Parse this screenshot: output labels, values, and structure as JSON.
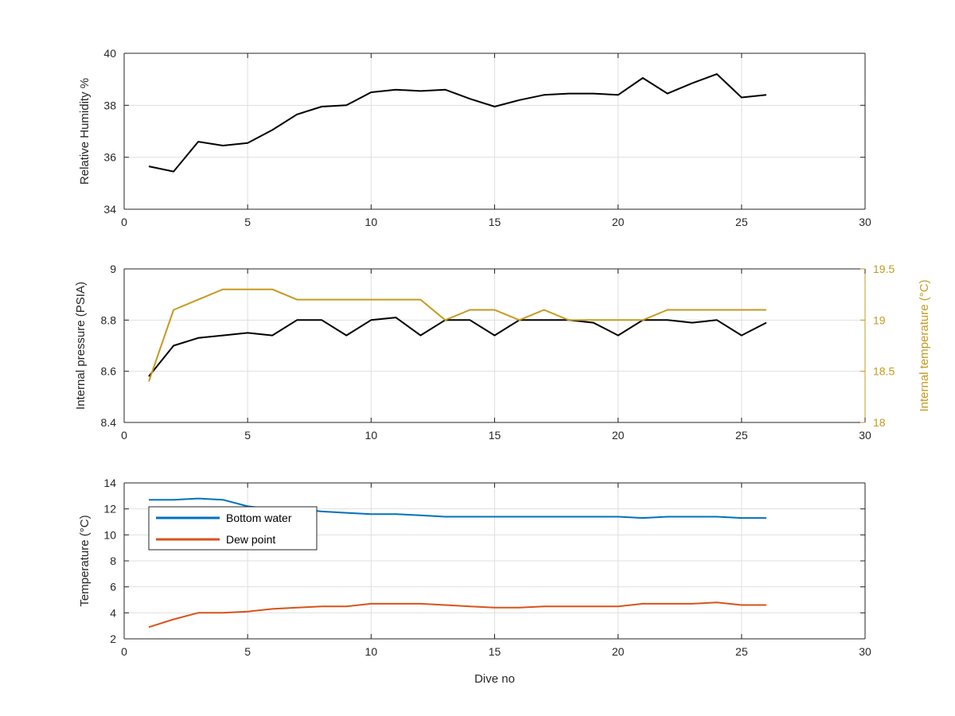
{
  "colors": {
    "black": "#000000",
    "axis": "#262626",
    "grid": "#dfdfdf",
    "gold": "#c59a1f",
    "blue": "#0072bd",
    "orange": "#d95319"
  },
  "chart_data": [
    {
      "type": "line",
      "xlabel": "",
      "ylabel": "Relative Humidity %",
      "xlim": [
        0,
        30
      ],
      "ylim": [
        34,
        40
      ],
      "xticks": [
        0,
        5,
        10,
        15,
        20,
        25,
        30
      ],
      "yticks": [
        34,
        36,
        38,
        40
      ],
      "grid": true,
      "x": [
        1,
        2,
        3,
        4,
        5,
        6,
        7,
        8,
        9,
        10,
        11,
        12,
        13,
        14,
        15,
        16,
        17,
        18,
        19,
        20,
        21,
        22,
        23,
        24,
        25,
        26
      ],
      "series": [
        {
          "color": "black",
          "axis": "left",
          "values": [
            35.65,
            35.45,
            36.6,
            36.45,
            36.55,
            37.05,
            37.65,
            37.95,
            38.0,
            38.5,
            38.6,
            38.55,
            38.6,
            38.25,
            37.95,
            38.2,
            38.4,
            38.45,
            38.45,
            38.4,
            39.05,
            38.45,
            38.85,
            39.2,
            38.3,
            38.4
          ]
        }
      ]
    },
    {
      "type": "line",
      "xlabel": "",
      "ylabel": "Internal pressure (PSIA)",
      "y2label": "Internal temperature (°C)",
      "xlim": [
        0,
        30
      ],
      "ylim": [
        8.4,
        9
      ],
      "y2lim": [
        18,
        19.5
      ],
      "xticks": [
        0,
        5,
        10,
        15,
        20,
        25,
        30
      ],
      "yticks": [
        8.4,
        8.6,
        8.8,
        9
      ],
      "ytick_labels": [
        "8.4",
        "8.6",
        "8.8",
        "9"
      ],
      "y2ticks": [
        18,
        18.5,
        19,
        19.5
      ],
      "y2tick_labels": [
        "18",
        "18.5",
        "19",
        "19.5"
      ],
      "grid": true,
      "x": [
        1,
        2,
        3,
        4,
        5,
        6,
        7,
        8,
        9,
        10,
        11,
        12,
        13,
        14,
        15,
        16,
        17,
        18,
        19,
        20,
        21,
        22,
        23,
        24,
        25,
        26
      ],
      "series": [
        {
          "color": "black",
          "axis": "left",
          "values": [
            8.58,
            8.7,
            8.73,
            8.74,
            8.75,
            8.74,
            8.8,
            8.8,
            8.74,
            8.8,
            8.81,
            8.74,
            8.8,
            8.8,
            8.74,
            8.8,
            8.8,
            8.8,
            8.79,
            8.74,
            8.8,
            8.8,
            8.79,
            8.8,
            8.74,
            8.79
          ]
        },
        {
          "color": "gold",
          "axis": "right",
          "values": [
            18.4,
            19.1,
            19.2,
            19.3,
            19.3,
            19.3,
            19.2,
            19.2,
            19.2,
            19.2,
            19.2,
            19.2,
            19.0,
            19.1,
            19.1,
            19.0,
            19.1,
            19.0,
            19.0,
            19.0,
            19.0,
            19.1,
            19.1,
            19.1,
            19.1,
            19.1
          ]
        }
      ]
    },
    {
      "type": "line",
      "xlabel": "Dive no",
      "ylabel": "Temperature (°C)",
      "xlim": [
        0,
        30
      ],
      "ylim": [
        2,
        14
      ],
      "xticks": [
        0,
        5,
        10,
        15,
        20,
        25,
        30
      ],
      "yticks": [
        2,
        4,
        6,
        8,
        10,
        12,
        14
      ],
      "grid": true,
      "legend": "top-left",
      "x": [
        1,
        2,
        3,
        4,
        5,
        6,
        7,
        8,
        9,
        10,
        11,
        12,
        13,
        14,
        15,
        16,
        17,
        18,
        19,
        20,
        21,
        22,
        23,
        24,
        25,
        26
      ],
      "series": [
        {
          "name": "Bottom water",
          "color": "blue",
          "axis": "left",
          "values": [
            12.7,
            12.7,
            12.8,
            12.7,
            12.2,
            12.0,
            12.0,
            11.8,
            11.7,
            11.6,
            11.6,
            11.5,
            11.4,
            11.4,
            11.4,
            11.4,
            11.4,
            11.4,
            11.4,
            11.4,
            11.3,
            11.4,
            11.4,
            11.4,
            11.3,
            11.3
          ]
        },
        {
          "name": "Dew point",
          "color": "orange",
          "axis": "left",
          "values": [
            2.9,
            3.5,
            4.0,
            4.0,
            4.1,
            4.3,
            4.4,
            4.5,
            4.5,
            4.7,
            4.7,
            4.7,
            4.6,
            4.5,
            4.4,
            4.4,
            4.5,
            4.5,
            4.5,
            4.5,
            4.7,
            4.7,
            4.7,
            4.8,
            4.6,
            4.6
          ]
        }
      ]
    }
  ]
}
